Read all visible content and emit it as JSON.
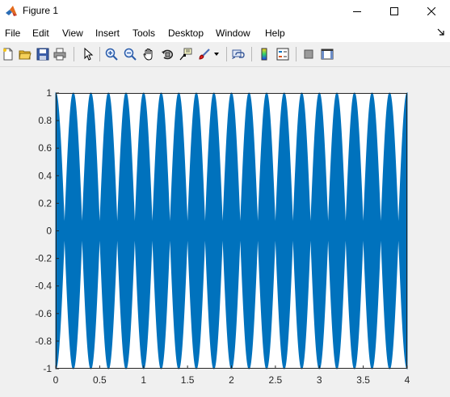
{
  "window": {
    "title": "Figure 1",
    "app_icon": "matlab-logo-icon"
  },
  "window_controls": [
    "minimize-icon",
    "maximize-icon",
    "close-icon"
  ],
  "menu": [
    "File",
    "Edit",
    "View",
    "Insert",
    "Tools",
    "Desktop",
    "Window",
    "Help"
  ],
  "toolbar_icons": [
    "new-figure-icon",
    "open-file-icon",
    "save-icon",
    "print-icon",
    "edit-plot-icon",
    "zoom-in-icon",
    "zoom-out-icon",
    "pan-icon",
    "rotate-3d-icon",
    "data-cursor-icon",
    "brush-icon",
    "link-plot-icon",
    "insert-colorbar-icon",
    "insert-legend-icon",
    "hide-plot-tools-icon",
    "show-plot-tools-icon"
  ],
  "colors": {
    "series": "#0072bd",
    "axes_bg": "#ffffff",
    "figure_bg": "#f0f0f0"
  },
  "chart_data": {
    "type": "line",
    "title": "",
    "xlabel": "",
    "ylabel": "",
    "xlim": [
      0,
      4
    ],
    "ylim": [
      -1,
      1
    ],
    "xticks": [
      0,
      0.5,
      1,
      1.5,
      2,
      2.5,
      3,
      3.5,
      4
    ],
    "xtick_labels": [
      "0",
      "0.5",
      "1",
      "1.5",
      "2",
      "2.5",
      "3",
      "3.5",
      "4"
    ],
    "yticks": [
      -1,
      -0.8,
      -0.6,
      -0.4,
      -0.2,
      0,
      0.2,
      0.4,
      0.6,
      0.8,
      1
    ],
    "ytick_labels": [
      "-1",
      "-0.8",
      "-0.6",
      "-0.4",
      "-0.2",
      "0",
      "0.2",
      "0.4",
      "0.6",
      "0.8",
      "1"
    ],
    "grid": false,
    "legend": "none",
    "series": [
      {
        "envelope_frequency_hz": 5,
        "envelope_lobes": 40,
        "amplitude": 1,
        "fill_appearance": "solid"
      }
    ]
  }
}
